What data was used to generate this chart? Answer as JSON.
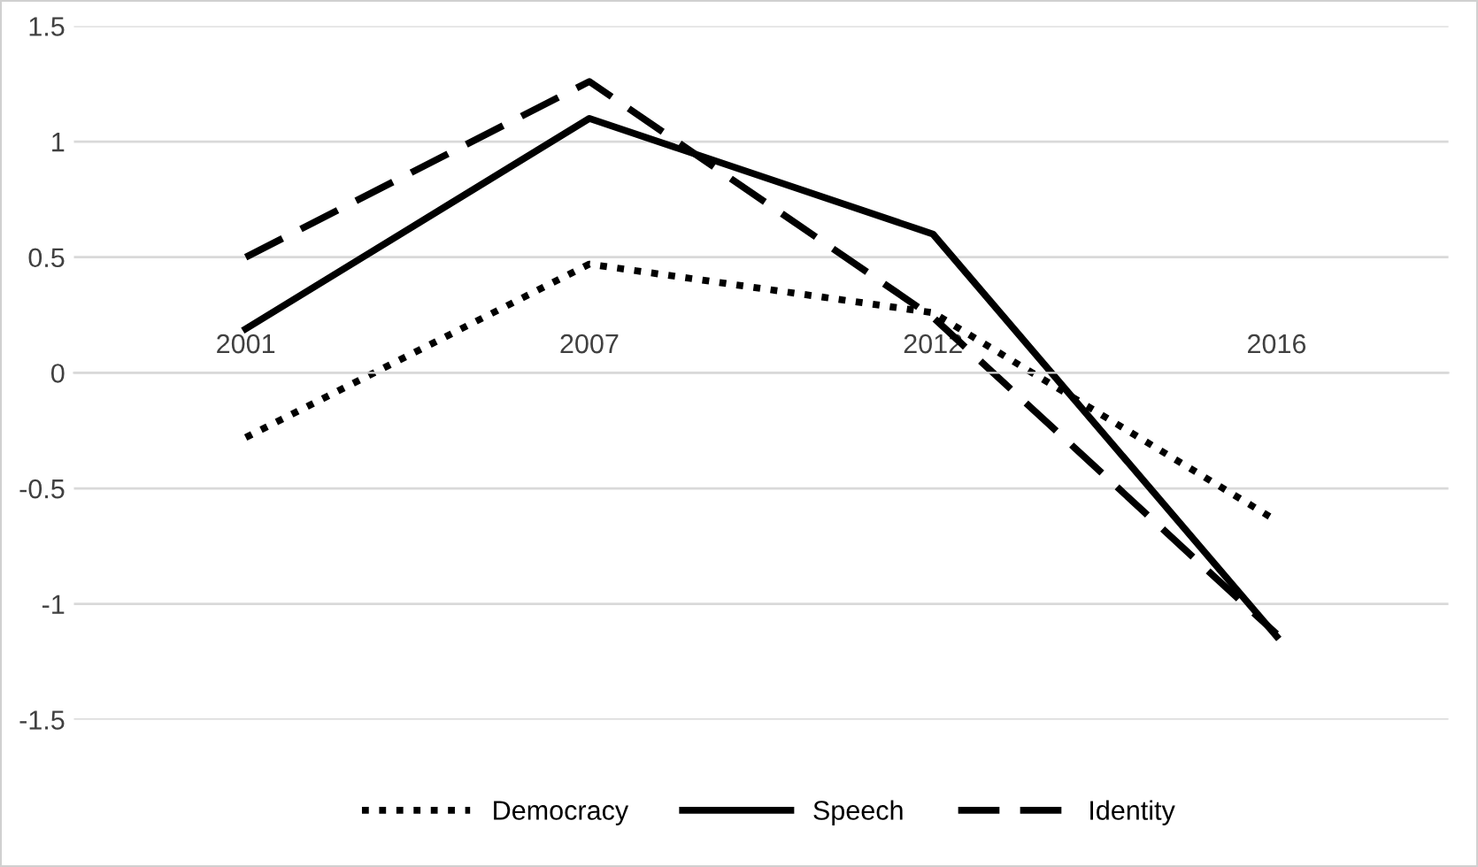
{
  "chart_data": {
    "type": "line",
    "categories": [
      "2001",
      "2007",
      "2012",
      "2016"
    ],
    "series": [
      {
        "name": "Democracy",
        "color": "#000000",
        "line_style": "dotted",
        "values": [
          -0.28,
          0.47,
          0.26,
          -0.64
        ]
      },
      {
        "name": "Speech",
        "color": "#000000",
        "line_style": "solid",
        "values": [
          0.19,
          1.1,
          0.6,
          -1.14
        ]
      },
      {
        "name": "Identity",
        "color": "#000000",
        "line_style": "dashed",
        "values": [
          0.5,
          1.26,
          0.24,
          -1.13
        ]
      }
    ],
    "ylim": [
      -1.5,
      1.5
    ],
    "yticks": [
      -1.5,
      -1,
      -0.5,
      0,
      0.5,
      1,
      1.5
    ],
    "grid": "y",
    "legend": "bottom",
    "marker": "none"
  }
}
